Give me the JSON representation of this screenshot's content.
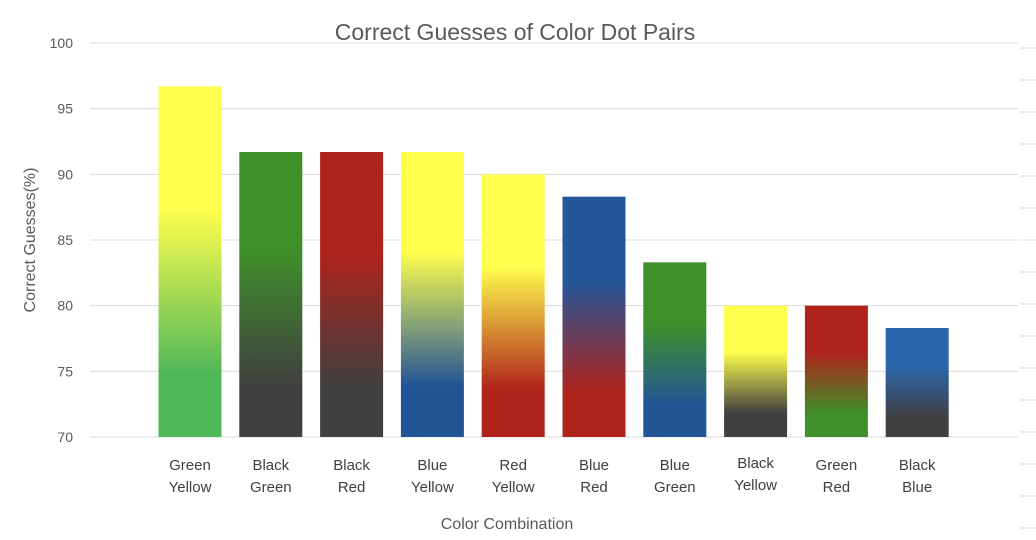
{
  "chart_data": {
    "type": "bar",
    "title": "Correct Guesses of Color Dot Pairs",
    "xlabel": "Color Combination",
    "ylabel": "Correct Guesses(%)",
    "ylim": [
      70,
      100
    ],
    "yticks": [
      70,
      75,
      80,
      85,
      90,
      95,
      100
    ],
    "grid": true,
    "categories": [
      [
        "Green",
        "Yellow"
      ],
      [
        "Black",
        "Green"
      ],
      [
        "Black",
        "Red"
      ],
      [
        "Blue",
        "Yellow"
      ],
      [
        "Red",
        "Yellow"
      ],
      [
        "Blue",
        "Red"
      ],
      [
        "Blue",
        "Green"
      ],
      [
        "Black",
        "Yellow"
      ],
      [
        "Green",
        "Red"
      ],
      [
        "Black",
        "Blue"
      ]
    ],
    "values": [
      96.7,
      91.7,
      91.7,
      91.7,
      90.0,
      88.3,
      83.3,
      80.0,
      80.0,
      78.3
    ],
    "bar_colors": [
      [
        "#ffff4d",
        "#4fb858"
      ],
      [
        "#3f8f2a",
        "#404040"
      ],
      [
        "#b0231b",
        "#404040"
      ],
      [
        "#ffff4d",
        "#225596"
      ],
      [
        "#ffff4d",
        "#b0231b"
      ],
      [
        "#24569a",
        "#b0231b"
      ],
      [
        "#3f8f2a",
        "#225596"
      ],
      [
        "#ffff4d",
        "#404040"
      ],
      [
        "#b0231b",
        "#3f8f2a"
      ],
      [
        "#2a66ad",
        "#404040"
      ]
    ]
  }
}
